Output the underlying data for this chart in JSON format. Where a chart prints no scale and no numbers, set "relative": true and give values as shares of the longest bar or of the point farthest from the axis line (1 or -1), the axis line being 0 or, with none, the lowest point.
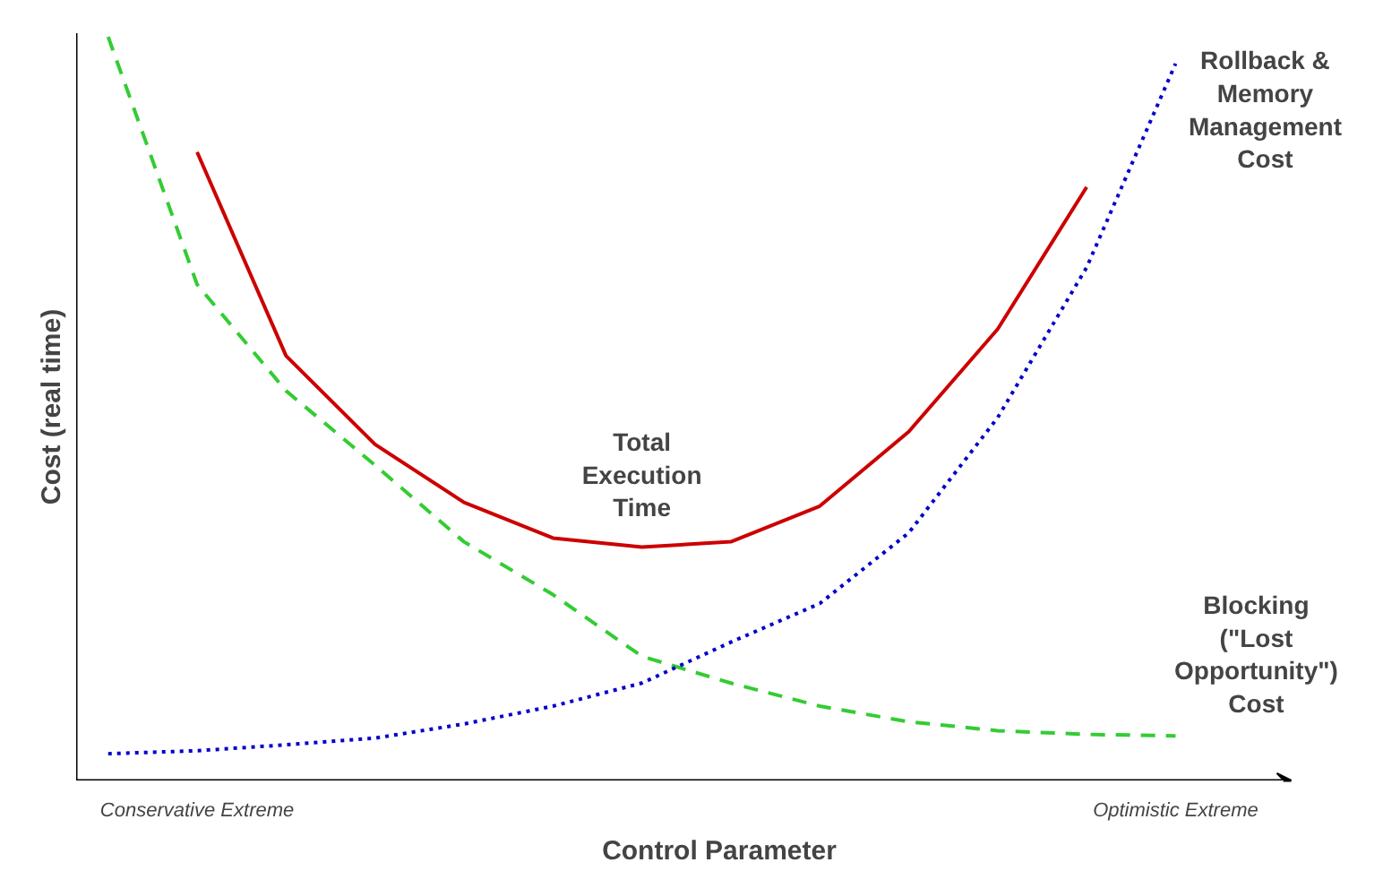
{
  "chart_data": {
    "type": "line",
    "relative": true,
    "xlabel": "Control Parameter",
    "ylabel": "Cost (real time)",
    "categories": [
      null,
      "Conservative Extreme",
      null,
      null,
      null,
      null,
      null,
      null,
      null,
      null,
      null,
      null,
      "Optimistic Extreme"
    ],
    "grid": false,
    "legend": false,
    "marker": "none",
    "series": [
      {
        "name": "Total Execution Time",
        "color": "#cc0000",
        "line_style": "solid",
        "values": [
          null,
          0.845,
          0.571,
          0.452,
          0.374,
          0.326,
          0.314,
          0.321,
          0.369,
          0.469,
          0.607,
          0.798,
          null
        ]
      },
      {
        "name": "Blocking (\"Lost Opportunity\") Cost",
        "color": "#33cc33",
        "line_style": "dashed",
        "values": [
          1.0,
          0.667,
          0.524,
          0.424,
          0.321,
          0.25,
          0.167,
          0.131,
          0.1,
          0.079,
          0.067,
          0.062,
          0.06
        ]
      },
      {
        "name": "Rollback & Memory Management Cost",
        "color": "#0000cc",
        "line_style": "dotted",
        "values": [
          0.036,
          0.04,
          0.048,
          0.057,
          0.076,
          0.1,
          0.131,
          0.186,
          0.238,
          0.333,
          0.488,
          0.69,
          0.964
        ]
      }
    ]
  }
}
